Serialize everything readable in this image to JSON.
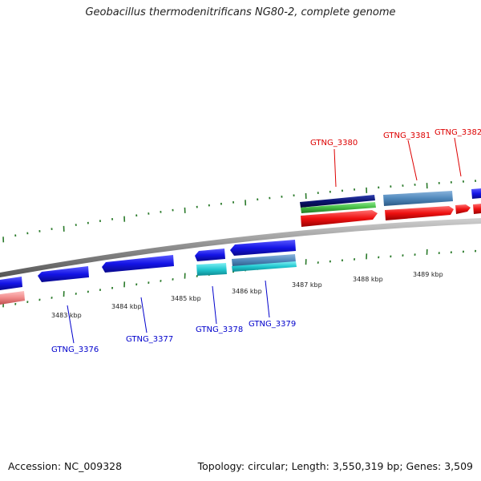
{
  "title": "Geobacillus thermodenitrificans NG80-2, complete genome",
  "footer": {
    "accession": "Accession: NC_009328",
    "summary": "Topology: circular; Length: 3,550,319 bp; Genes: 3,509"
  },
  "scale_labels": [
    "3483 kbp",
    "3484 kbp",
    "3485 kbp",
    "3486 kbp",
    "3487 kbp",
    "3488 kbp",
    "3489 kbp"
  ],
  "gene_labels": {
    "GTNG_3376": "GTNG_3376",
    "GTNG_3377": "GTNG_3377",
    "GTNG_3378": "GTNG_3378",
    "GTNG_3379": "GTNG_3379",
    "GTNG_3380": "GTNG_3380",
    "GTNG_3381": "GTNG_3381",
    "GTNG_3382": "GTNG_3382"
  },
  "colors": {
    "backbone": "#8c8c8c",
    "tick": "#2a7a2a",
    "forward_label": "#dd0000",
    "reverse_label": "#0000cc",
    "blue_gene": "#1414e6",
    "red_gene": "#ee1010",
    "steel_gene": "#4f88bb",
    "cyan_gene": "#22c8d0",
    "green_gene": "#44bb44",
    "navy_gene": "#0a1470",
    "pink_gene": "#f08a8a"
  }
}
